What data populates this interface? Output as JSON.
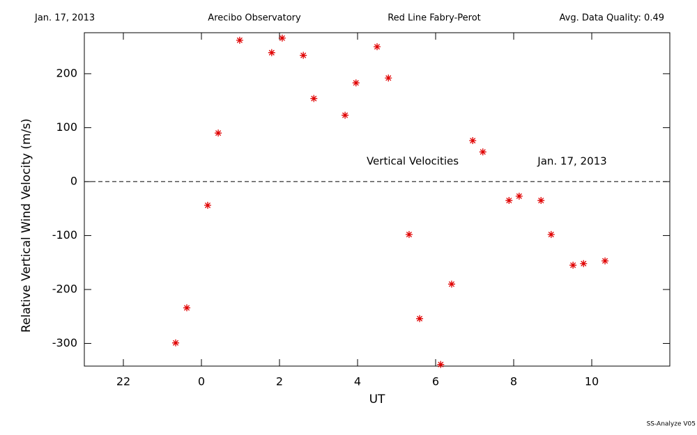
{
  "chart_data": {
    "type": "scatter",
    "header": [
      "Jan. 17, 2013",
      "Arecibo Observatory",
      "Red Line Fabry-Perot",
      "Avg. Data Quality: 0.49"
    ],
    "xlabel": "UT",
    "ylabel": "Relative Vertical Wind Velocity (m/s)",
    "annotations": [
      "Vertical Velocities",
      "Jan. 17, 2013"
    ],
    "footer": "SS-Analyze V05",
    "xlim": [
      -3,
      12
    ],
    "ylim": [
      -342,
      276
    ],
    "xticks": [
      {
        "value": -2,
        "label": "22"
      },
      0,
      2,
      4,
      6,
      8,
      10
    ],
    "yticks": [
      -300,
      -200,
      -100,
      0,
      100,
      200
    ],
    "hline": 0,
    "series": [
      {
        "color": "#e00000",
        "x": [
          -0.66,
          -0.375,
          0.16,
          0.43,
          0.98,
          1.8,
          2.07,
          2.61,
          2.88,
          3.68,
          3.96,
          4.5,
          4.79,
          5.32,
          5.59,
          6.13,
          6.41,
          6.95,
          7.21,
          7.88,
          8.14,
          8.7,
          8.96,
          9.52,
          9.79,
          10.34
        ],
        "values": [
          -299,
          -234,
          -44,
          90,
          262,
          239,
          266,
          234,
          154,
          123,
          183,
          250,
          192,
          -98,
          -254,
          -339,
          -190,
          76,
          55,
          -35,
          -27,
          -35,
          -98,
          -155,
          -152,
          -147
        ]
      }
    ]
  }
}
